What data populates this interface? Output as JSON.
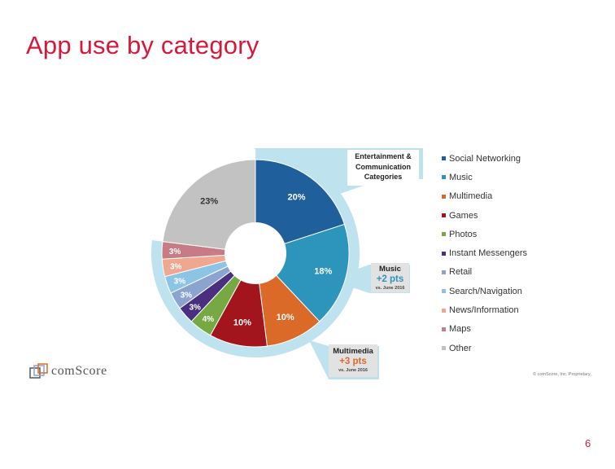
{
  "slide": {
    "title": "App use by category",
    "page_number": "6"
  },
  "chart_data": {
    "type": "pie",
    "categories": [
      "Social Networking",
      "Music",
      "Multimedia",
      "Games",
      "Photos",
      "Instant Messengers",
      "Retail",
      "Search/Navigation",
      "News/Information",
      "Maps",
      "Other"
    ],
    "values": [
      20,
      18,
      10,
      10,
      4,
      3,
      3,
      3,
      3,
      3,
      23
    ],
    "labels": [
      "20%",
      "18%",
      "10%",
      "10%",
      "4%",
      "3%",
      "3%",
      "3%",
      "3%",
      "3%",
      "23%"
    ],
    "colors": [
      "#1f5f9c",
      "#2d95bc",
      "#db6a28",
      "#a3151d",
      "#76a843",
      "#4a2f80",
      "#8aa4cf",
      "#8ec4e3",
      "#f0a78f",
      "#c77b84",
      "#c2c2c2"
    ],
    "legend_position": "right"
  },
  "callouts": {
    "entertainment": {
      "text": "Entertainment & Communication Categories"
    },
    "music": {
      "label": "Music",
      "change": "+2 pts",
      "ref": "vs. June 2016"
    },
    "multimedia": {
      "label": "Multimedia",
      "change": "+3 pts",
      "ref": "vs. June 2016"
    }
  },
  "callout_colors": {
    "frame": "#bfe2ef",
    "change_music": "#2d95bc",
    "change_multimedia": "#db6a28"
  },
  "footer": {
    "logo": "comScore",
    "copyright": "© comScore, Inc. Proprietary."
  }
}
